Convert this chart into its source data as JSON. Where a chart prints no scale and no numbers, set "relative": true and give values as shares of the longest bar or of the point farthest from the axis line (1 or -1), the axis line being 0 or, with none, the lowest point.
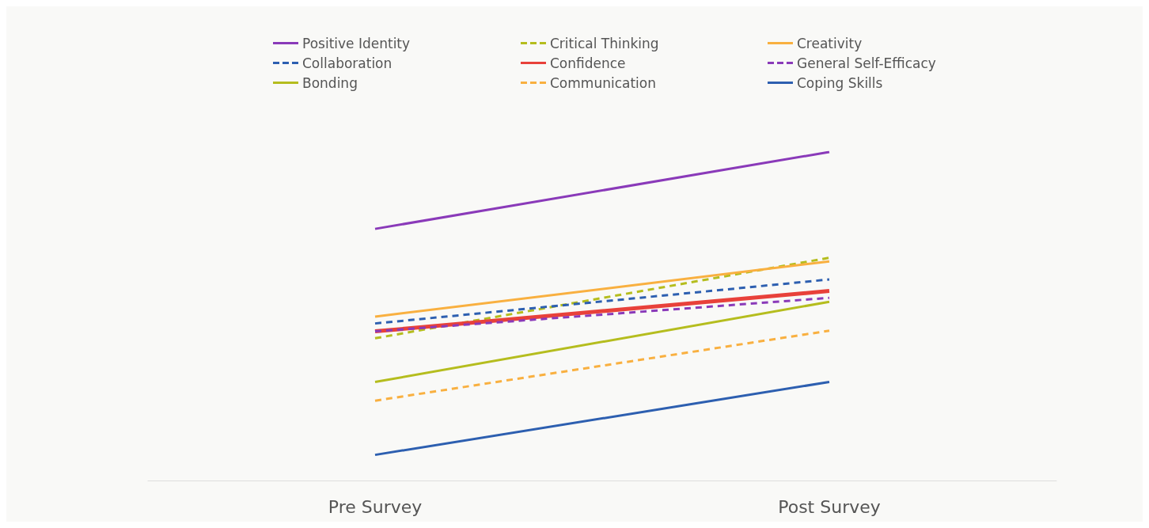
{
  "chart_data": {
    "type": "line",
    "relative": true,
    "legend": "top",
    "grid": false,
    "marker": "none",
    "categories": [
      "Pre Survey",
      "Post Survey"
    ],
    "series": [
      {
        "name": "Positive Identity",
        "color": "#8a3ab9",
        "line_style": "solid",
        "values": [
          0.766,
          1
        ]
      },
      {
        "name": "Critical Thinking",
        "color": "#b5bd1e",
        "line_style": "dashed",
        "values": [
          0.433,
          0.678
        ]
      },
      {
        "name": "Creativity",
        "color": "#f9b040",
        "line_style": "solid",
        "values": [
          0.499,
          0.667
        ]
      },
      {
        "name": "Collaboration",
        "color": "#2d5fb0",
        "line_style": "dashed",
        "values": [
          0.478,
          0.612
        ]
      },
      {
        "name": "Confidence",
        "color": "#e8413a",
        "line_style": "solid",
        "values": [
          0.454,
          0.577
        ]
      },
      {
        "name": "General Self-Efficacy",
        "color": "#8a3ab9",
        "line_style": "dashed",
        "values": [
          0.454,
          0.556
        ]
      },
      {
        "name": "Bonding",
        "color": "#b5bd1e",
        "line_style": "solid",
        "values": [
          0.3,
          0.544
        ]
      },
      {
        "name": "Communication",
        "color": "#f9b040",
        "line_style": "dashed",
        "values": [
          0.243,
          0.456
        ]
      },
      {
        "name": "Coping Skills",
        "color": "#2d5fb0",
        "line_style": "solid",
        "values": [
          0.078,
          0.3
        ]
      }
    ]
  }
}
